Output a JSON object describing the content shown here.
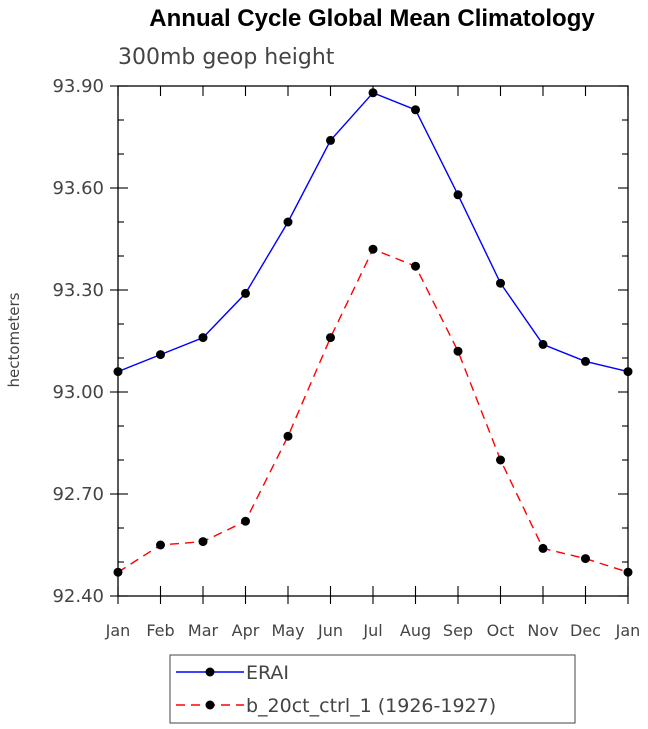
{
  "chart_data": {
    "type": "line",
    "title": "Annual Cycle Global Mean Climatology",
    "subtitle": "300mb geop height",
    "xlabel": "",
    "ylabel": "hectometers",
    "categories": [
      "Jan",
      "Feb",
      "Mar",
      "Apr",
      "May",
      "Jun",
      "Jul",
      "Aug",
      "Sep",
      "Oct",
      "Nov",
      "Dec",
      "Jan"
    ],
    "ylim": [
      92.4,
      93.9
    ],
    "yticks": [
      "92.40",
      "92.70",
      "93.00",
      "93.30",
      "93.60",
      "93.90"
    ],
    "grid": false,
    "legend_position": "bottom",
    "series": [
      {
        "name": "ERAI",
        "color": "#0000ff",
        "line_style": "solid",
        "values": [
          93.06,
          93.11,
          93.16,
          93.29,
          93.5,
          93.74,
          93.88,
          93.83,
          93.58,
          93.32,
          93.14,
          93.09,
          93.06
        ]
      },
      {
        "name": "b_20ct_ctrl_1 (1926-1927)",
        "color": "#ff0000",
        "line_style": "dashed",
        "values": [
          92.47,
          92.55,
          92.56,
          92.62,
          92.87,
          93.16,
          93.42,
          93.37,
          93.12,
          92.8,
          92.54,
          92.51,
          92.47
        ]
      }
    ]
  }
}
